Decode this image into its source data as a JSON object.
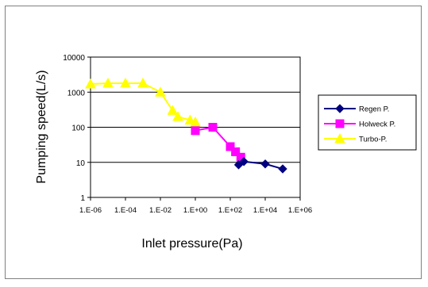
{
  "chart_data": {
    "type": "scatter",
    "xscale": "log",
    "yscale": "log",
    "xlim": [
      1e-06,
      1000000.0
    ],
    "ylim": [
      1,
      10000
    ],
    "xlabel": "Inlet pressure(Pa)",
    "ylabel": "Pumping speed(L/s)",
    "xtick_labels": [
      "1.E-06",
      "1.E-04",
      "1.E-02",
      "1.E+00",
      "1.E+02",
      "1.E+04",
      "1.E+06"
    ],
    "xtick_values": [
      1e-06,
      0.0001,
      0.01,
      1,
      100,
      10000,
      1000000
    ],
    "ytick_labels": [
      "1",
      "10",
      "100",
      "1000",
      "10000"
    ],
    "ytick_values": [
      1,
      10,
      100,
      1000,
      10000
    ],
    "grid": "horizontal major",
    "legend_position": "right",
    "series": [
      {
        "name": "Regen P.",
        "color": "#000080",
        "marker": "diamond",
        "x": [
          300,
          600,
          10000,
          100000
        ],
        "y": [
          8.5,
          10.5,
          9,
          6.5
        ]
      },
      {
        "name": "Holweck P.",
        "color": "#ff00ff",
        "marker": "square",
        "x": [
          1,
          10,
          100,
          200,
          400
        ],
        "y": [
          80,
          100,
          28,
          20,
          14
        ]
      },
      {
        "name": "Turbo-P.",
        "color": "#ffff00",
        "marker": "triangle",
        "x": [
          1e-06,
          1e-05,
          0.0001,
          0.001,
          0.01,
          0.05,
          0.1,
          0.5,
          1
        ],
        "y": [
          1700,
          1800,
          1800,
          1800,
          1000,
          300,
          200,
          160,
          140
        ]
      }
    ]
  }
}
